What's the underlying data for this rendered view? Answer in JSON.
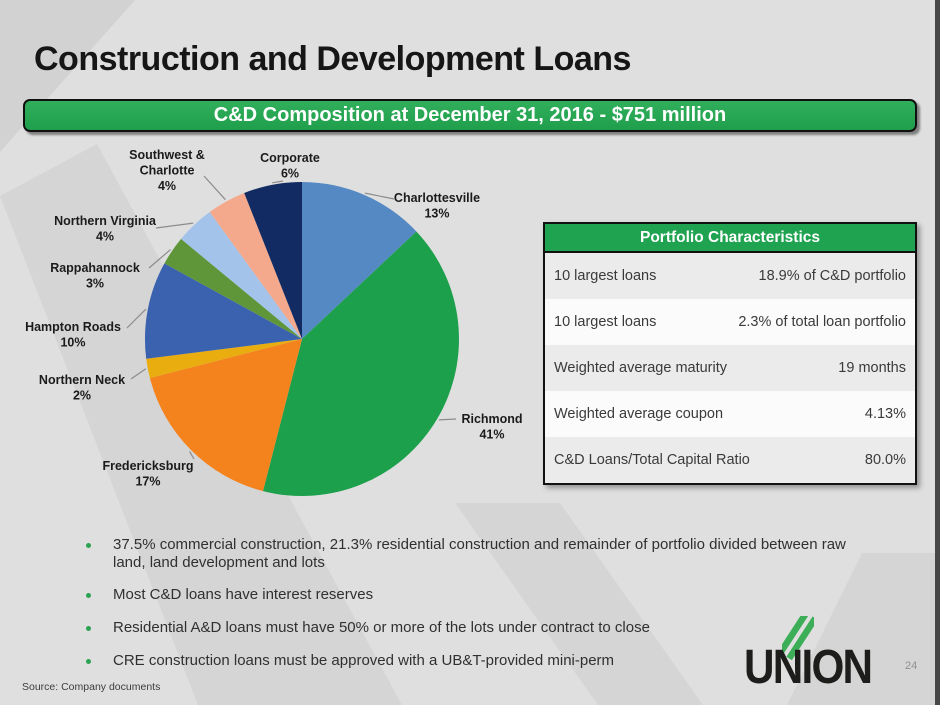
{
  "header": {
    "title": "Construction and Development Loans",
    "banner": "C&D Composition at December 31, 2016 - $751 million"
  },
  "chart_data": {
    "type": "pie",
    "title": "C&D Composition at December 31, 2016 - $751 million",
    "total": "$751 million",
    "unit": "%",
    "categories": [
      "Charlottesville",
      "Richmond",
      "Fredericksburg",
      "Northern Neck",
      "Hampton Roads",
      "Rappahannock",
      "Northern Virginia",
      "Southwest & Charlotte",
      "Corporate"
    ],
    "values": [
      13,
      41,
      17,
      2,
      10,
      3,
      4,
      4,
      6
    ],
    "colors": [
      "#5589c4",
      "#1da04c",
      "#f5831d",
      "#e9ad10",
      "#3b62ae",
      "#60963a",
      "#a3c3ea",
      "#f4a98c",
      "#122b63"
    ],
    "label_lines": [
      [
        "Charlottesville",
        "13%"
      ],
      [
        "Richmond",
        "41%"
      ],
      [
        "Fredericksburg",
        "17%"
      ],
      [
        "Northern Neck",
        "2%"
      ],
      [
        "Hampton Roads",
        "10%"
      ],
      [
        "Rappahannock",
        "3%"
      ],
      [
        "Northern Virginia",
        "4%"
      ],
      [
        "Southwest &",
        "Charlotte",
        "4%"
      ],
      [
        "Corporate",
        "6%"
      ]
    ],
    "legend_position": "labels-with-leader-lines",
    "start_angle": "top-clockwise"
  },
  "portfolio_table": {
    "title": "Portfolio Characteristics",
    "rows": [
      {
        "label": "10 largest loans",
        "value": "18.9% of C&D portfolio"
      },
      {
        "label": "10 largest loans",
        "value": "2.3% of total loan portfolio"
      },
      {
        "label": "Weighted average maturity",
        "value": "19 months"
      },
      {
        "label": "Weighted average coupon",
        "value": "4.13%"
      },
      {
        "label": "C&D Loans/Total Capital Ratio",
        "value": "80.0%"
      }
    ]
  },
  "bullets": [
    "37.5% commercial construction, 21.3% residential construction and remainder of portfolio divided between raw land, land development and lots",
    "Most C&D loans have interest reserves",
    "Residential A&D loans must have 50% or more of the lots under contract to close",
    "CRE construction loans must be approved with a UB&T-provided mini-perm"
  ],
  "footer": {
    "source": "Source: Company documents",
    "logo_text": "UNION",
    "page_number": "24"
  },
  "colors": {
    "accent_green": "#1fa351",
    "logo_stripe_green": "#3cae57",
    "leader_line_gray": "#8c8c8c"
  }
}
